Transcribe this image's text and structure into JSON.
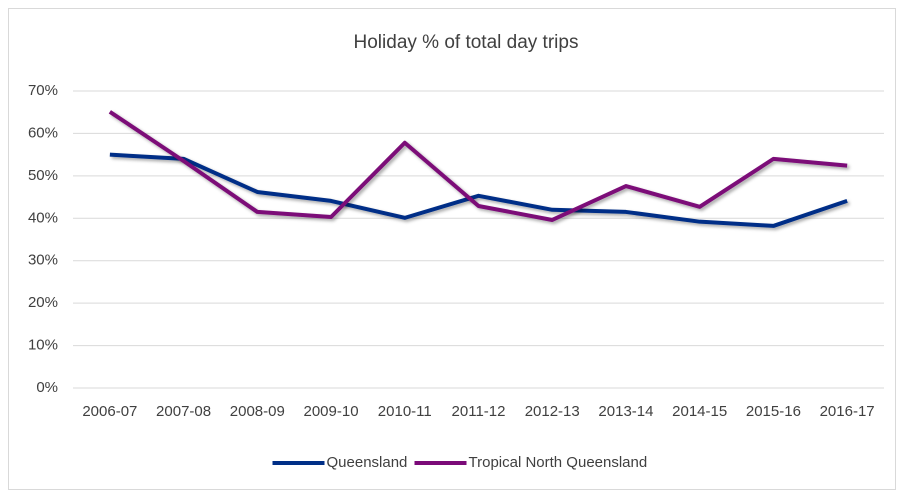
{
  "chart_data": {
    "type": "line",
    "title": "Holiday % of total day trips",
    "categories": [
      "2006-07",
      "2007-08",
      "2008-09",
      "2009-10",
      "2010-11",
      "2011-12",
      "2012-13",
      "2013-14",
      "2014-15",
      "2015-16",
      "2016-17"
    ],
    "series": [
      {
        "name": "Queensland",
        "color": "#002f87",
        "values": [
          55.0,
          54.0,
          46.2,
          44.1,
          40.1,
          45.3,
          42.0,
          41.5,
          39.2,
          38.2,
          44.1
        ]
      },
      {
        "name": "Tropical North Queensland",
        "color": "#7b0a78",
        "values": [
          65.1,
          53.5,
          41.5,
          40.3,
          57.8,
          42.9,
          39.6,
          47.6,
          42.7,
          54.0,
          52.4
        ]
      }
    ],
    "ylim": [
      0,
      70
    ],
    "yticks": [
      {
        "value": 0,
        "label": "0%"
      },
      {
        "value": 10,
        "label": "10%"
      },
      {
        "value": 20,
        "label": "20%"
      },
      {
        "value": 30,
        "label": "30%"
      },
      {
        "value": 40,
        "label": "40%"
      },
      {
        "value": 50,
        "label": "50%"
      },
      {
        "value": 60,
        "label": "60%"
      },
      {
        "value": 70,
        "label": "70%"
      }
    ],
    "grid": true,
    "legend": "bottom"
  }
}
